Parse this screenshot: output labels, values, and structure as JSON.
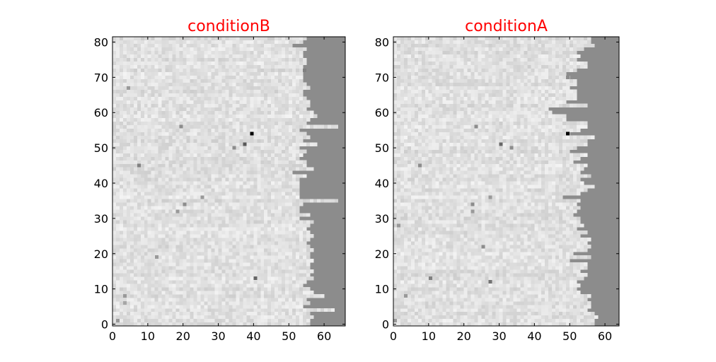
{
  "chart_data": [
    {
      "type": "heatmap",
      "title": "conditionB",
      "xlabel": "",
      "ylabel": "",
      "xlim": [
        0,
        66
      ],
      "ylim": [
        0,
        82
      ],
      "xticks": [
        "0",
        "10",
        "20",
        "30",
        "40",
        "50",
        "60"
      ],
      "yticks": [
        "0",
        "10",
        "20",
        "30",
        "40",
        "50",
        "60",
        "70",
        "80"
      ],
      "colormap": "gray",
      "background_fill": "#8c8c8c",
      "cell_range": [
        0.82,
        0.94
      ],
      "notable_cells": [
        {
          "x": 39,
          "y": 54,
          "v": 0.0
        },
        {
          "x": 37,
          "y": 51,
          "v": 0.35
        },
        {
          "x": 34,
          "y": 50,
          "v": 0.55
        },
        {
          "x": 40,
          "y": 13,
          "v": 0.4
        },
        {
          "x": 7,
          "y": 45,
          "v": 0.5
        },
        {
          "x": 4,
          "y": 67,
          "v": 0.6
        },
        {
          "x": 19,
          "y": 56,
          "v": 0.55
        },
        {
          "x": 20,
          "y": 34,
          "v": 0.55
        },
        {
          "x": 18,
          "y": 32,
          "v": 0.6
        },
        {
          "x": 25,
          "y": 36,
          "v": 0.6
        },
        {
          "x": 12,
          "y": 19,
          "v": 0.6
        },
        {
          "x": 3,
          "y": 8,
          "v": 0.6
        },
        {
          "x": 3,
          "y": 6,
          "v": 0.65
        },
        {
          "x": 54,
          "y": 72,
          "v": 0.5
        },
        {
          "x": 1,
          "y": 1,
          "v": 0.6
        }
      ],
      "row_lengths": [
        56,
        56,
        57,
        56,
        63,
        54,
        56,
        55,
        60,
        57,
        56,
        54,
        55,
        57,
        56,
        57,
        56,
        56,
        57,
        56,
        56,
        57,
        56,
        55,
        56,
        57,
        56,
        55,
        56,
        57,
        53,
        56,
        53,
        53,
        54,
        64,
        53,
        53,
        53,
        53,
        53,
        53,
        55,
        51,
        57,
        55,
        55,
        53,
        54,
        55,
        53,
        58,
        54,
        56,
        55,
        53,
        64,
        55,
        56,
        58,
        57,
        55,
        56,
        56,
        55,
        54,
        54,
        56,
        55,
        54,
        54,
        54,
        54,
        54,
        55,
        55,
        54,
        54,
        55,
        51,
        54,
        55
      ]
    },
    {
      "type": "heatmap",
      "title": "conditionA",
      "xlabel": "",
      "ylabel": "",
      "xlim": [
        0,
        64
      ],
      "ylim": [
        0,
        82
      ],
      "xticks": [
        "0",
        "10",
        "20",
        "30",
        "40",
        "50",
        "60"
      ],
      "yticks": [
        "0",
        "10",
        "20",
        "30",
        "40",
        "50",
        "60",
        "70",
        "80"
      ],
      "colormap": "gray",
      "background_fill": "#8c8c8c",
      "cell_range": [
        0.82,
        0.94
      ],
      "notable_cells": [
        {
          "x": 49,
          "y": 54,
          "v": 0.0
        },
        {
          "x": 30,
          "y": 51,
          "v": 0.4
        },
        {
          "x": 33,
          "y": 50,
          "v": 0.55
        },
        {
          "x": 27,
          "y": 12,
          "v": 0.45
        },
        {
          "x": 10,
          "y": 13,
          "v": 0.5
        },
        {
          "x": 7,
          "y": 45,
          "v": 0.55
        },
        {
          "x": 23,
          "y": 56,
          "v": 0.55
        },
        {
          "x": 22,
          "y": 34,
          "v": 0.55
        },
        {
          "x": 22,
          "y": 32,
          "v": 0.6
        },
        {
          "x": 27,
          "y": 36,
          "v": 0.6
        },
        {
          "x": 25,
          "y": 22,
          "v": 0.55
        },
        {
          "x": 3,
          "y": 8,
          "v": 0.6
        },
        {
          "x": 1,
          "y": 28,
          "v": 0.6
        },
        {
          "x": 49,
          "y": 70,
          "v": 0.55
        },
        {
          "x": 0,
          "y": 1,
          "v": 0.6
        }
      ],
      "row_lengths": [
        57,
        57,
        58,
        57,
        55,
        56,
        56,
        55,
        56,
        53,
        52,
        53,
        52,
        54,
        55,
        53,
        55,
        55,
        50,
        56,
        51,
        55,
        56,
        55,
        56,
        53,
        55,
        52,
        54,
        53,
        53,
        51,
        52,
        53,
        52,
        53,
        48,
        53,
        55,
        57,
        54,
        53,
        56,
        53,
        54,
        55,
        51,
        53,
        55,
        50,
        52,
        55,
        55,
        57,
        50,
        53,
        55,
        55,
        49,
        49,
        45,
        44,
        55,
        49,
        52,
        52,
        52,
        50,
        52,
        52,
        50,
        49,
        52,
        55,
        55,
        52,
        53,
        52,
        54,
        57,
        56,
        56
      ]
    }
  ]
}
